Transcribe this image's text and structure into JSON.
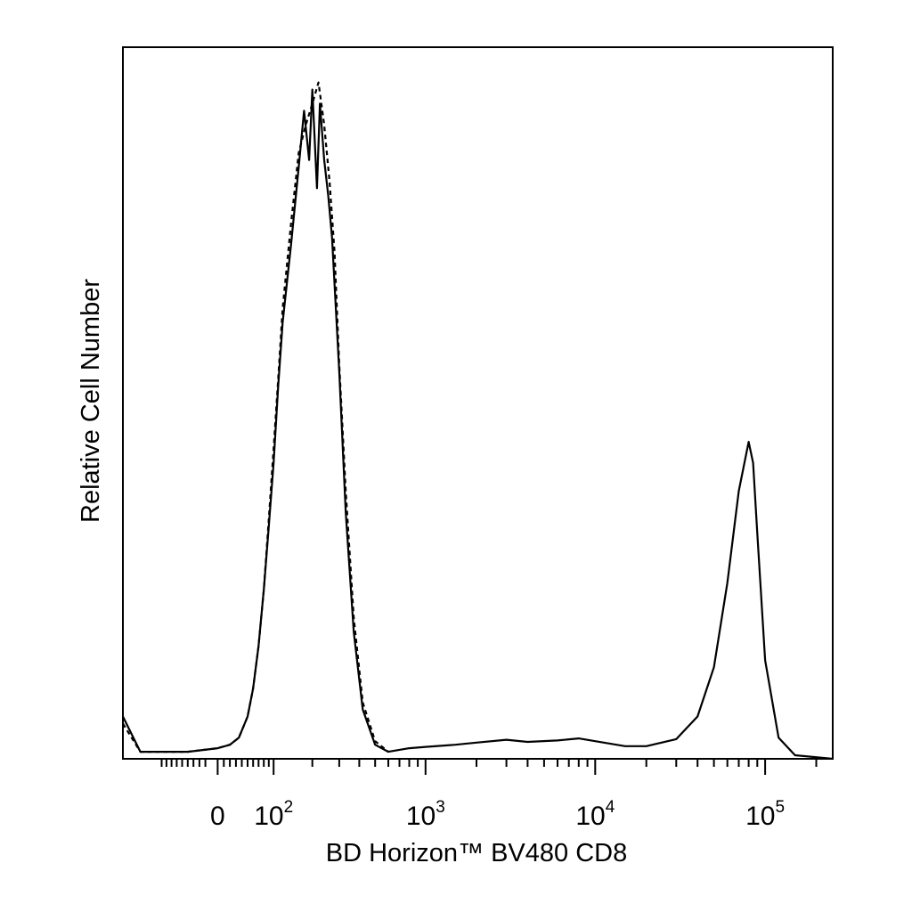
{
  "chart_data": {
    "type": "line",
    "xlabel": "BD Horizon™ BV480 CD8",
    "ylabel": "Relative Cell Number",
    "x_scale": "biexponential",
    "x_tick_labels": [
      {
        "base": "0",
        "exp": ""
      },
      {
        "base": "10",
        "exp": "2"
      },
      {
        "base": "10",
        "exp": "3"
      },
      {
        "base": "10",
        "exp": "4"
      },
      {
        "base": "10",
        "exp": "5"
      }
    ],
    "x_ticks_major": [
      0,
      100,
      1000,
      10000,
      100000
    ],
    "xlim": [
      -200,
      250000
    ],
    "ylim": [
      0,
      100
    ],
    "grid": false,
    "series": [
      {
        "style": "solid",
        "color": "#000000",
        "points": [
          [
            -200,
            6
          ],
          [
            -150,
            1
          ],
          [
            -50,
            1
          ],
          [
            0,
            1.5
          ],
          [
            20,
            2
          ],
          [
            35,
            3
          ],
          [
            50,
            6
          ],
          [
            60,
            10
          ],
          [
            70,
            16
          ],
          [
            80,
            24
          ],
          [
            90,
            33
          ],
          [
            100,
            42
          ],
          [
            110,
            53
          ],
          [
            120,
            62
          ],
          [
            140,
            73
          ],
          [
            160,
            84
          ],
          [
            175,
            92
          ],
          [
            190,
            85
          ],
          [
            200,
            95
          ],
          [
            215,
            81
          ],
          [
            225,
            93
          ],
          [
            240,
            85
          ],
          [
            255,
            80
          ],
          [
            270,
            74
          ],
          [
            300,
            55
          ],
          [
            330,
            35
          ],
          [
            370,
            18
          ],
          [
            420,
            7
          ],
          [
            500,
            2
          ],
          [
            600,
            1
          ],
          [
            800,
            1.5
          ],
          [
            1000,
            1.7
          ],
          [
            1500,
            2
          ],
          [
            2000,
            2.3
          ],
          [
            3000,
            2.7
          ],
          [
            4000,
            2.4
          ],
          [
            6000,
            2.6
          ],
          [
            8000,
            2.9
          ],
          [
            10000,
            2.5
          ],
          [
            15000,
            1.8
          ],
          [
            20000,
            1.8
          ],
          [
            30000,
            2.8
          ],
          [
            40000,
            6
          ],
          [
            50000,
            13
          ],
          [
            60000,
            25
          ],
          [
            70000,
            38
          ],
          [
            80000,
            45
          ],
          [
            85000,
            42
          ],
          [
            90000,
            32
          ],
          [
            100000,
            14
          ],
          [
            120000,
            3
          ],
          [
            150000,
            0.5
          ],
          [
            250000,
            0
          ]
        ]
      },
      {
        "style": "dashed",
        "color": "#000000",
        "points": [
          [
            -200,
            5
          ],
          [
            -150,
            1
          ],
          [
            -50,
            1
          ],
          [
            0,
            1.5
          ],
          [
            20,
            2
          ],
          [
            35,
            3
          ],
          [
            50,
            6
          ],
          [
            60,
            10
          ],
          [
            70,
            16
          ],
          [
            80,
            24
          ],
          [
            90,
            34
          ],
          [
            100,
            44
          ],
          [
            110,
            54
          ],
          [
            120,
            64
          ],
          [
            140,
            76
          ],
          [
            160,
            86
          ],
          [
            180,
            90
          ],
          [
            200,
            93
          ],
          [
            220,
            96
          ],
          [
            240,
            90
          ],
          [
            260,
            82
          ],
          [
            280,
            72
          ],
          [
            300,
            56
          ],
          [
            330,
            38
          ],
          [
            370,
            20
          ],
          [
            420,
            8
          ],
          [
            500,
            2.5
          ],
          [
            600,
            1
          ]
        ]
      }
    ]
  }
}
